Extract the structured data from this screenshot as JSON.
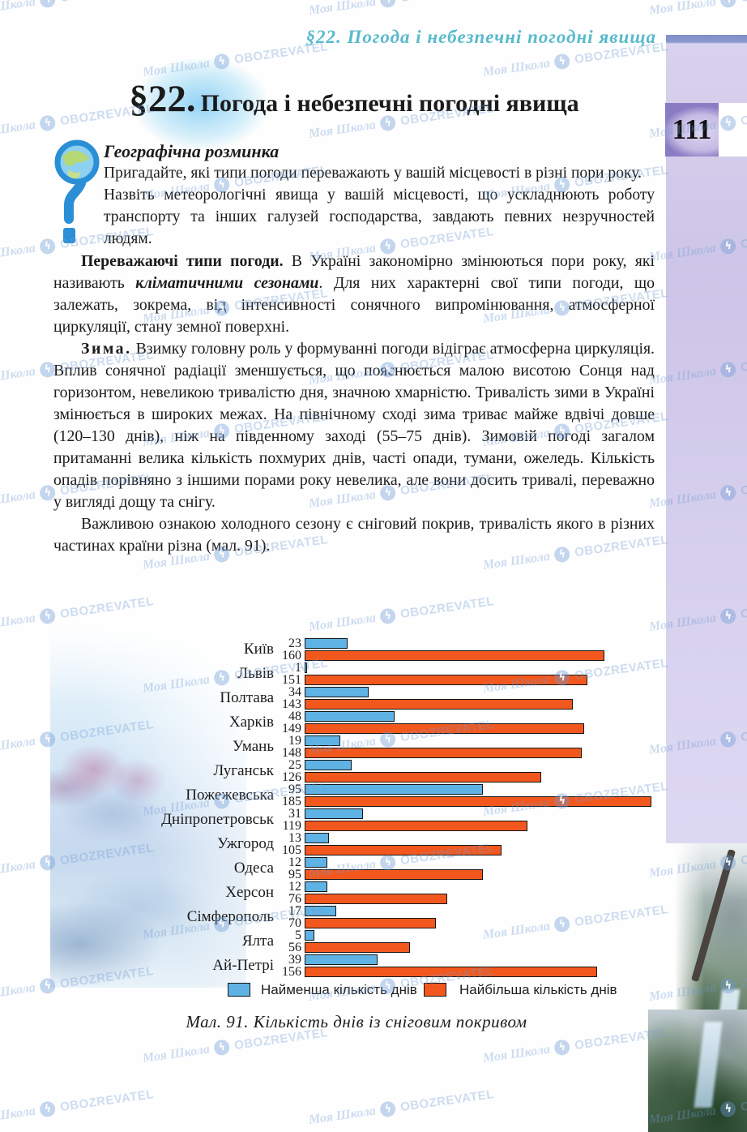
{
  "watermark": {
    "site": "Моя Школа",
    "brand": "OBOZREVATEL",
    "icon": "globe-bolt-icon"
  },
  "running_head": "§22. Погода і небезпечні погодні явища",
  "page_number": "111",
  "title": {
    "mark": "§22.",
    "text": "Погода і небезпечні погодні явища"
  },
  "warmup": {
    "heading": "Географічна розминка",
    "items": [
      "Пригадайте, які типи погоди переважають у вашій місцевості в різні пори року.",
      "Назвіть метеорологічні явища у вашій місцевості, що ускладнюють роботу транспорту та інших галузей господарства, завдають певних незручностей людям."
    ]
  },
  "paragraphs": {
    "p1": {
      "lead": "Переважаючі типи погоди.",
      "t1": " В Україні закономірно змінюються пори року, які називають ",
      "em": "кліматичними сезонами",
      "t2": ". Для них характерні свої типи погоди, що залежать, зокрема, від інтенсивності сонячного випромінювання, атмосферної циркуляції, стану земної поверхні."
    },
    "p2": {
      "lead": "Зима.",
      "t1": " Взимку головну роль у формуванні погоди відіграє атмосферна циркуляція. Вплив сонячної радіації зменшується, що пояснюється малою висотою Сонця над горизонтом, невеликою тривалістю дня, значною хмарністю. Тривалість зими в Україні змінюється в широких межах. На північному сході зима триває майже вдвічі довше (120–130 днів), ніж на південному заході (55–75 днів). Зимовій погоді загалом притаманні велика кількість похмурих днів, часті опади, тумани, ожеледь. Кількість опадів порівняно з іншими порами року невелика, але вони досить тривалі, переважно у вигляді дощу та снігу."
    },
    "p3": {
      "t1": "Важливою ознакою холодного сезону є сніговий покрив, тривалість якого в різних частинах країни різна (мал. 91)."
    }
  },
  "chart_data": {
    "type": "bar",
    "orientation": "horizontal",
    "title": "",
    "caption": "Мал. 91. Кількість днів із сніговим покривом",
    "xlabel": "",
    "ylabel": "",
    "xlim": [
      0,
      185
    ],
    "grid": false,
    "legend_position": "bottom",
    "categories": [
      "Київ",
      "Львів",
      "Полтава",
      "Харків",
      "Умань",
      "Луганськ",
      "Пожежевська",
      "Дніпропетровськ",
      "Ужгород",
      "Одеса",
      "Херсон",
      "Сімферополь",
      "Ялта",
      "Ай-Петрі"
    ],
    "series": [
      {
        "name": "Найменша кількість днів",
        "color": "#5fb3e4",
        "values": [
          23,
          1,
          34,
          48,
          19,
          25,
          95,
          31,
          13,
          12,
          12,
          17,
          5,
          39
        ]
      },
      {
        "name": "Найбільша кількість днів",
        "color": "#f2581e",
        "values": [
          160,
          151,
          143,
          149,
          148,
          126,
          185,
          119,
          105,
          95,
          76,
          70,
          56,
          156
        ]
      }
    ]
  },
  "colors": {
    "accent_teal": "#3aafc4",
    "bar_min": "#5fb3e4",
    "bar_max": "#f2581e",
    "sidebar": "#cfc8e8",
    "page_box": "#8a7cc2",
    "watermark_blue": "#6e9bd7"
  }
}
